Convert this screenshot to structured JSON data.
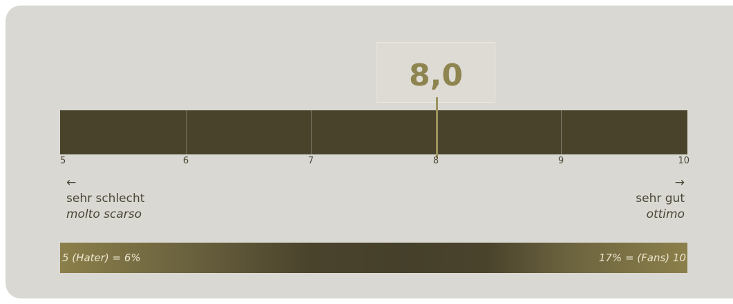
{
  "score": {
    "value": "8,0",
    "numeric": 8.0,
    "scale_min": 5,
    "scale_max": 10
  },
  "ticks": [
    "5",
    "6",
    "7",
    "8",
    "9",
    "10"
  ],
  "labels": {
    "left_arrow": "←",
    "left_de": "sehr schlecht",
    "left_it": "molto scarso",
    "right_arrow": "→",
    "right_de": "sehr gut",
    "right_it": "ottimo"
  },
  "distribution": {
    "left_text": "5 (Hater) = 6%",
    "right_text": "17% = (Fans) 10",
    "hater_percent": 6,
    "fans_percent": 17
  },
  "colors": {
    "panel_bg": "#dad8d2",
    "bar_dark": "#49432c",
    "accent_gold": "#8e8450",
    "text": "#4a4636"
  }
}
